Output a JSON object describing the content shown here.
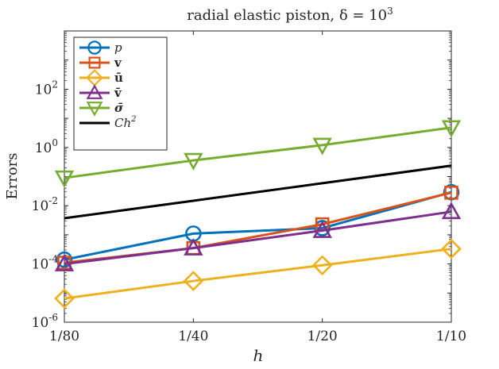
{
  "chart_data": {
    "type": "line",
    "title": "radial elastic piston, δ = 10",
    "title_exp": "3",
    "xlabel": "h",
    "ylabel": "Errors",
    "x_scale": "log2",
    "y_scale": "log10",
    "categories": [
      "1/80",
      "1/40",
      "1/20",
      "1/10"
    ],
    "x": [
      0.0125,
      0.025,
      0.05,
      0.1
    ],
    "ylim_exp": [
      -6,
      4
    ],
    "yticks": [
      {
        "base": "10",
        "exp": "2",
        "value_exp": 2
      },
      {
        "base": "10",
        "exp": "0",
        "value_exp": 0
      },
      {
        "base": "10",
        "exp": "-2",
        "value_exp": -2
      },
      {
        "base": "10",
        "exp": "-4",
        "value_exp": -4
      },
      {
        "base": "10",
        "exp": "-6",
        "value_exp": -6
      }
    ],
    "grid": false,
    "legend_position": "top-left",
    "series": [
      {
        "name": "p",
        "label_style": "italic",
        "color": "#0072BD",
        "marker": "circle",
        "values": [
          0.00014,
          0.0011,
          0.0017,
          0.029
        ]
      },
      {
        "name": "v",
        "label_style": "bold",
        "color": "#D95319",
        "marker": "square",
        "values": [
          0.00011,
          0.00035,
          0.0023,
          0.028
        ]
      },
      {
        "name": "ū",
        "label_style": "bold",
        "color": "#EDB120",
        "marker": "diamond",
        "values": [
          6.5e-06,
          2.6e-05,
          9e-05,
          0.00033
        ]
      },
      {
        "name": "v̄",
        "label_style": "bold",
        "color": "#7E2F8E",
        "marker": "triangle-up",
        "values": [
          0.0001,
          0.00035,
          0.0014,
          0.0062
        ]
      },
      {
        "name": "σ̄",
        "label_style": "bold-italic",
        "color": "#77AC30",
        "marker": "triangle-down",
        "values": [
          0.09,
          0.36,
          1.2,
          4.8
        ]
      },
      {
        "name": "Ch",
        "name_exp": "2",
        "label_style": "italic",
        "color": "#000000",
        "marker": "none",
        "values": [
          0.0037,
          0.0148,
          0.059,
          0.237
        ]
      }
    ]
  }
}
